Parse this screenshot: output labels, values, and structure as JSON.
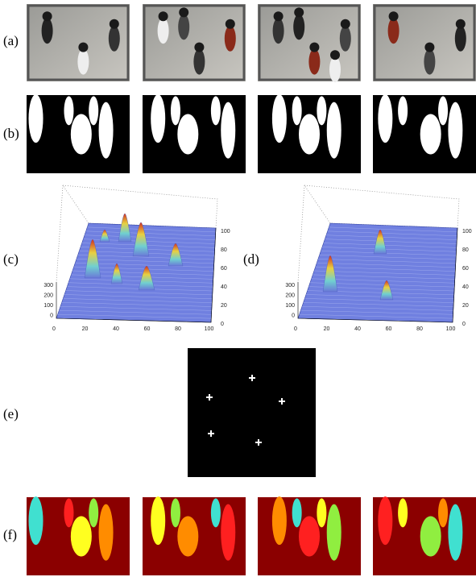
{
  "panels": [
    {
      "label": "(a)"
    },
    {
      "label": "(b)"
    },
    {
      "label": "(c)"
    },
    {
      "label": "(d)"
    },
    {
      "label": "(e)"
    },
    {
      "label": "(f)"
    }
  ],
  "plot_c": {
    "z_ticks": [
      300,
      200,
      100,
      0
    ],
    "x_ticks": [
      0,
      20,
      40,
      60,
      80,
      100
    ],
    "y_ticks": [
      100,
      80,
      60,
      40,
      20,
      0
    ]
  },
  "plot_d": {
    "z_ticks": [
      300,
      200,
      100,
      0
    ],
    "x_ticks": [
      0,
      20,
      40,
      60,
      80,
      100
    ],
    "y_ticks": [
      100,
      80,
      60,
      40,
      20,
      0
    ]
  }
}
